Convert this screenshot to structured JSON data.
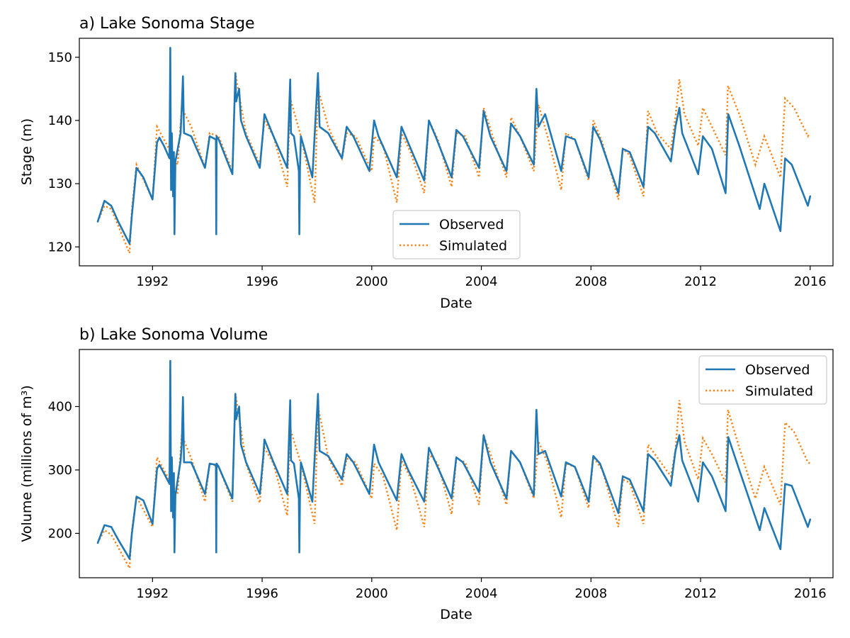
{
  "colors": {
    "observed": "#1f77b4",
    "simulated": "#ff7f0e"
  },
  "chart_data": [
    {
      "type": "line",
      "title": "a) Lake Sonoma Stage",
      "xlabel": "Date",
      "ylabel": "Stage (m)",
      "xlim": [
        "1989-05-01",
        "2016-11-01"
      ],
      "ylim": [
        117,
        153
      ],
      "x_ticks": [
        "1992",
        "1996",
        "2000",
        "2004",
        "2008",
        "2012",
        "2016"
      ],
      "y_ticks": [
        120,
        130,
        140,
        150
      ],
      "legend": {
        "placement": "lower-center",
        "entries": [
          "Observed",
          "Simulated"
        ]
      },
      "grid": false,
      "series": [
        {
          "name": "Observed",
          "style": "solid",
          "x": [
            "1990-01-01",
            "1990-04-01",
            "1990-07-01",
            "1990-10-01",
            "1991-03-01",
            "1991-04-01",
            "1991-06-01",
            "1991-09-01",
            "1992-01-01",
            "1992-03-01",
            "1992-04-01",
            "1992-06-01",
            "1992-08-15",
            "1992-08-25",
            "1992-09-05",
            "1992-09-15",
            "1992-10-01",
            "1992-10-12",
            "1992-10-20",
            "1992-11-01",
            "1993-01-10",
            "1993-01-25",
            "1993-02-10",
            "1993-02-25",
            "1993-06-01",
            "1993-12-01",
            "1994-02-01",
            "1994-04-25",
            "1994-04-30",
            "1994-05-05",
            "1994-06-01",
            "1994-12-01",
            "1995-01-10",
            "1995-01-20",
            "1995-03-01",
            "1995-03-25",
            "1995-06-01",
            "1995-12-01",
            "1996-01-15",
            "1996-02-01",
            "1996-06-01",
            "1996-12-01",
            "1997-01-10",
            "1997-01-20",
            "1997-03-01",
            "1997-05-05",
            "1997-05-12",
            "1997-05-20",
            "1997-06-01",
            "1997-11-01",
            "1998-01-15",
            "1998-02-05",
            "1998-06-01",
            "1998-12-01",
            "1999-02-01",
            "1999-05-01",
            "1999-12-01",
            "2000-02-01",
            "2000-04-01",
            "2000-12-01",
            "2001-02-01",
            "2001-05-01",
            "2001-12-01",
            "2002-02-01",
            "2002-05-01",
            "2002-12-01",
            "2003-02-01",
            "2003-05-01",
            "2003-12-01",
            "2004-02-01",
            "2004-05-01",
            "2004-12-01",
            "2005-02-01",
            "2005-06-01",
            "2005-12-01",
            "2006-01-05",
            "2006-02-01",
            "2006-05-01",
            "2006-12-01",
            "2007-02-01",
            "2007-06-01",
            "2007-12-01",
            "2008-02-01",
            "2008-05-01",
            "2009-01-01",
            "2009-03-01",
            "2009-06-01",
            "2009-12-01",
            "2010-02-01",
            "2010-05-01",
            "2010-12-01",
            "2011-02-01",
            "2011-03-25",
            "2011-05-01",
            "2011-12-01",
            "2012-02-01",
            "2012-06-01",
            "2012-12-01",
            "2013-01-05",
            "2013-06-01",
            "2014-03-01",
            "2014-05-01",
            "2014-12-01",
            "2015-02-01",
            "2015-05-01",
            "2015-12-01",
            "2016-01-01"
          ],
          "y": [
            124,
            127.3,
            126.5,
            124,
            120.5,
            125,
            132.5,
            131,
            127.5,
            136.5,
            137.3,
            136,
            134,
            151.5,
            129,
            138,
            128,
            135,
            122,
            133.5,
            138,
            142,
            147,
            138,
            137.5,
            132.5,
            137.5,
            137,
            122,
            137.5,
            137,
            131.5,
            147.5,
            143,
            145,
            140,
            137.5,
            132.5,
            138.5,
            141,
            137.5,
            132.5,
            146.5,
            138,
            137.5,
            132,
            122,
            132.5,
            137.5,
            131,
            147.5,
            139,
            138,
            134,
            139,
            137.5,
            132,
            140,
            137.5,
            131,
            139,
            136.5,
            130.5,
            140,
            137.5,
            131,
            138.5,
            137.5,
            132.5,
            141.5,
            137.5,
            132,
            139.5,
            137.5,
            133,
            145,
            139,
            141,
            132,
            137.5,
            137,
            131,
            139,
            137,
            128.5,
            135.5,
            135,
            129.5,
            139,
            138,
            133.5,
            139,
            142,
            138,
            131.5,
            137.5,
            135.5,
            128.5,
            141,
            136,
            126,
            130,
            122.5,
            134,
            133,
            126.5,
            128
          ]
        },
        {
          "name": "Simulated",
          "style": "dotted",
          "x": [
            "1990-01-01",
            "1990-04-01",
            "1990-07-01",
            "1991-03-01",
            "1991-04-01",
            "1991-06-01",
            "1992-01-01",
            "1992-03-01",
            "1992-06-01",
            "1992-12-01",
            "1993-01-25",
            "1993-06-01",
            "1993-12-01",
            "1994-02-01",
            "1994-06-01",
            "1994-12-01",
            "1995-01-10",
            "1995-03-01",
            "1995-06-01",
            "1995-12-01",
            "1996-02-01",
            "1996-06-01",
            "1996-12-01",
            "1997-01-10",
            "1997-06-01",
            "1997-12-01",
            "1998-01-15",
            "1998-06-01",
            "1998-12-01",
            "1999-02-01",
            "1999-06-01",
            "2000-01-01",
            "2000-02-01",
            "2000-06-01",
            "2000-12-01",
            "2001-02-01",
            "2001-06-01",
            "2001-12-01",
            "2002-02-01",
            "2002-06-01",
            "2002-12-01",
            "2003-02-01",
            "2003-06-01",
            "2003-12-01",
            "2004-02-01",
            "2004-06-01",
            "2004-12-01",
            "2005-02-01",
            "2005-06-01",
            "2005-12-01",
            "2006-02-01",
            "2006-06-01",
            "2006-12-01",
            "2007-02-01",
            "2007-06-01",
            "2007-12-01",
            "2008-02-01",
            "2008-06-01",
            "2009-01-01",
            "2009-03-01",
            "2009-06-01",
            "2009-12-01",
            "2010-02-01",
            "2010-06-01",
            "2010-12-01",
            "2011-02-01",
            "2011-03-25",
            "2011-06-01",
            "2011-12-01",
            "2012-02-01",
            "2012-06-01",
            "2012-12-01",
            "2013-01-01",
            "2013-06-01",
            "2014-01-01",
            "2014-05-01",
            "2014-12-01",
            "2015-02-01",
            "2015-06-01",
            "2015-12-01",
            "2016-01-01"
          ],
          "y": [
            124,
            126.5,
            126,
            119,
            126,
            133,
            127.5,
            139,
            137,
            133,
            142,
            139,
            132.5,
            138,
            137.5,
            132,
            147.5,
            144,
            138,
            133,
            140,
            137.5,
            129.5,
            143.5,
            137.5,
            127,
            145,
            139,
            134,
            138,
            137.5,
            132,
            137.5,
            136,
            127,
            138,
            135,
            128.5,
            140,
            137,
            129.5,
            138,
            137.5,
            131,
            142,
            137.5,
            131,
            140.5,
            137.5,
            132,
            142.5,
            137.5,
            129,
            138,
            137,
            130.5,
            140,
            136.5,
            127.5,
            135.5,
            134.5,
            128,
            141.5,
            138,
            135.5,
            140.5,
            146.5,
            141,
            136,
            142,
            139,
            134.5,
            145.5,
            141,
            133,
            137.5,
            131,
            143.5,
            142,
            137.5,
            138
          ]
        }
      ]
    },
    {
      "type": "line",
      "title": "b) Lake Sonoma Volume",
      "xlabel": "Date",
      "ylabel": "Volume (millions of m³)",
      "xlim": [
        "1989-05-01",
        "2016-11-01"
      ],
      "ylim": [
        130,
        490
      ],
      "x_ticks": [
        "1992",
        "1996",
        "2000",
        "2004",
        "2008",
        "2012",
        "2016"
      ],
      "y_ticks": [
        200,
        300,
        400
      ],
      "legend": {
        "placement": "upper-right",
        "entries": [
          "Observed",
          "Simulated"
        ]
      },
      "grid": false,
      "series": [
        {
          "name": "Observed",
          "style": "solid",
          "x": [
            "1990-01-01",
            "1990-04-01",
            "1990-07-01",
            "1990-10-01",
            "1991-03-01",
            "1991-04-01",
            "1991-06-01",
            "1991-09-01",
            "1992-01-01",
            "1992-03-01",
            "1992-04-01",
            "1992-06-01",
            "1992-08-15",
            "1992-08-25",
            "1992-09-05",
            "1992-09-15",
            "1992-10-01",
            "1992-10-12",
            "1992-10-20",
            "1992-11-01",
            "1993-01-10",
            "1993-01-25",
            "1993-02-10",
            "1993-02-25",
            "1993-06-01",
            "1993-12-01",
            "1994-02-01",
            "1994-04-25",
            "1994-04-30",
            "1994-05-05",
            "1994-06-01",
            "1994-12-01",
            "1995-01-10",
            "1995-01-20",
            "1995-03-01",
            "1995-03-25",
            "1995-06-01",
            "1995-12-01",
            "1996-01-15",
            "1996-02-01",
            "1996-06-01",
            "1996-12-01",
            "1997-01-10",
            "1997-01-20",
            "1997-03-01",
            "1997-05-05",
            "1997-05-12",
            "1997-05-20",
            "1997-06-01",
            "1997-11-01",
            "1998-01-15",
            "1998-02-05",
            "1998-06-01",
            "1998-12-01",
            "1999-02-01",
            "1999-05-01",
            "1999-12-01",
            "2000-02-01",
            "2000-04-01",
            "2000-12-01",
            "2001-02-01",
            "2001-05-01",
            "2001-12-01",
            "2002-02-01",
            "2002-05-01",
            "2002-12-01",
            "2003-02-01",
            "2003-05-01",
            "2003-12-01",
            "2004-02-01",
            "2004-05-01",
            "2004-12-01",
            "2005-02-01",
            "2005-06-01",
            "2005-12-01",
            "2006-01-05",
            "2006-02-01",
            "2006-05-01",
            "2006-12-01",
            "2007-02-01",
            "2007-06-01",
            "2007-12-01",
            "2008-02-01",
            "2008-05-01",
            "2009-01-01",
            "2009-03-01",
            "2009-06-01",
            "2009-12-01",
            "2010-02-01",
            "2010-05-01",
            "2010-12-01",
            "2011-02-01",
            "2011-03-25",
            "2011-05-01",
            "2011-12-01",
            "2012-02-01",
            "2012-06-01",
            "2012-12-01",
            "2013-01-05",
            "2013-06-01",
            "2014-03-01",
            "2014-05-01",
            "2014-12-01",
            "2015-02-01",
            "2015-05-01",
            "2015-12-01",
            "2016-01-01"
          ],
          "y": [
            185,
            213,
            210,
            190,
            160,
            200,
            258,
            252,
            215,
            302,
            308,
            295,
            278,
            472,
            235,
            320,
            225,
            295,
            170,
            260,
            315,
            340,
            415,
            312,
            312,
            262,
            310,
            308,
            170,
            310,
            305,
            255,
            420,
            380,
            400,
            340,
            312,
            262,
            320,
            348,
            312,
            262,
            410,
            315,
            310,
            255,
            170,
            260,
            312,
            250,
            420,
            330,
            322,
            285,
            325,
            312,
            262,
            340,
            312,
            252,
            325,
            300,
            250,
            335,
            312,
            255,
            320,
            312,
            265,
            355,
            312,
            255,
            330,
            312,
            260,
            395,
            325,
            330,
            258,
            312,
            305,
            250,
            322,
            310,
            232,
            290,
            285,
            235,
            325,
            315,
            275,
            330,
            355,
            315,
            250,
            312,
            290,
            235,
            352,
            300,
            205,
            240,
            175,
            278,
            275,
            210,
            222
          ]
        },
        {
          "name": "Simulated",
          "style": "dotted",
          "x": [
            "1990-01-01",
            "1990-04-01",
            "1990-07-01",
            "1991-03-01",
            "1991-04-01",
            "1991-06-01",
            "1992-01-01",
            "1992-03-01",
            "1992-06-01",
            "1992-12-01",
            "1993-01-25",
            "1993-06-01",
            "1993-12-01",
            "1994-02-01",
            "1994-06-01",
            "1994-12-01",
            "1995-01-10",
            "1995-03-01",
            "1995-06-01",
            "1995-12-01",
            "1996-02-01",
            "1996-06-01",
            "1996-12-01",
            "1997-01-10",
            "1997-06-01",
            "1997-12-01",
            "1998-01-15",
            "1998-06-01",
            "1998-12-01",
            "1999-02-01",
            "1999-06-01",
            "2000-01-01",
            "2000-02-01",
            "2000-06-01",
            "2000-12-01",
            "2001-02-01",
            "2001-06-01",
            "2001-12-01",
            "2002-02-01",
            "2002-06-01",
            "2002-12-01",
            "2003-02-01",
            "2003-06-01",
            "2003-12-01",
            "2004-02-01",
            "2004-06-01",
            "2004-12-01",
            "2005-02-01",
            "2005-06-01",
            "2005-12-01",
            "2006-02-01",
            "2006-06-01",
            "2006-12-01",
            "2007-02-01",
            "2007-06-01",
            "2007-12-01",
            "2008-02-01",
            "2008-06-01",
            "2009-01-01",
            "2009-03-01",
            "2009-06-01",
            "2009-12-01",
            "2010-02-01",
            "2010-06-01",
            "2010-12-01",
            "2011-02-01",
            "2011-03-25",
            "2011-06-01",
            "2011-12-01",
            "2012-02-01",
            "2012-06-01",
            "2012-12-01",
            "2013-01-01",
            "2013-06-01",
            "2014-01-01",
            "2014-05-01",
            "2014-12-01",
            "2015-02-01",
            "2015-06-01",
            "2015-12-01",
            "2016-01-01"
          ],
          "y": [
            185,
            205,
            198,
            145,
            205,
            258,
            210,
            320,
            300,
            262,
            355,
            318,
            250,
            310,
            305,
            250,
            420,
            385,
            310,
            248,
            335,
            310,
            228,
            365,
            310,
            215,
            400,
            320,
            275,
            318,
            312,
            255,
            310,
            290,
            205,
            315,
            288,
            210,
            325,
            310,
            230,
            318,
            312,
            245,
            355,
            315,
            245,
            330,
            312,
            255,
            345,
            312,
            225,
            310,
            305,
            240,
            320,
            300,
            210,
            285,
            280,
            215,
            340,
            320,
            290,
            332,
            410,
            345,
            285,
            350,
            325,
            280,
            395,
            335,
            255,
            305,
            245,
            375,
            360,
            312,
            310
          ]
        }
      ]
    }
  ]
}
